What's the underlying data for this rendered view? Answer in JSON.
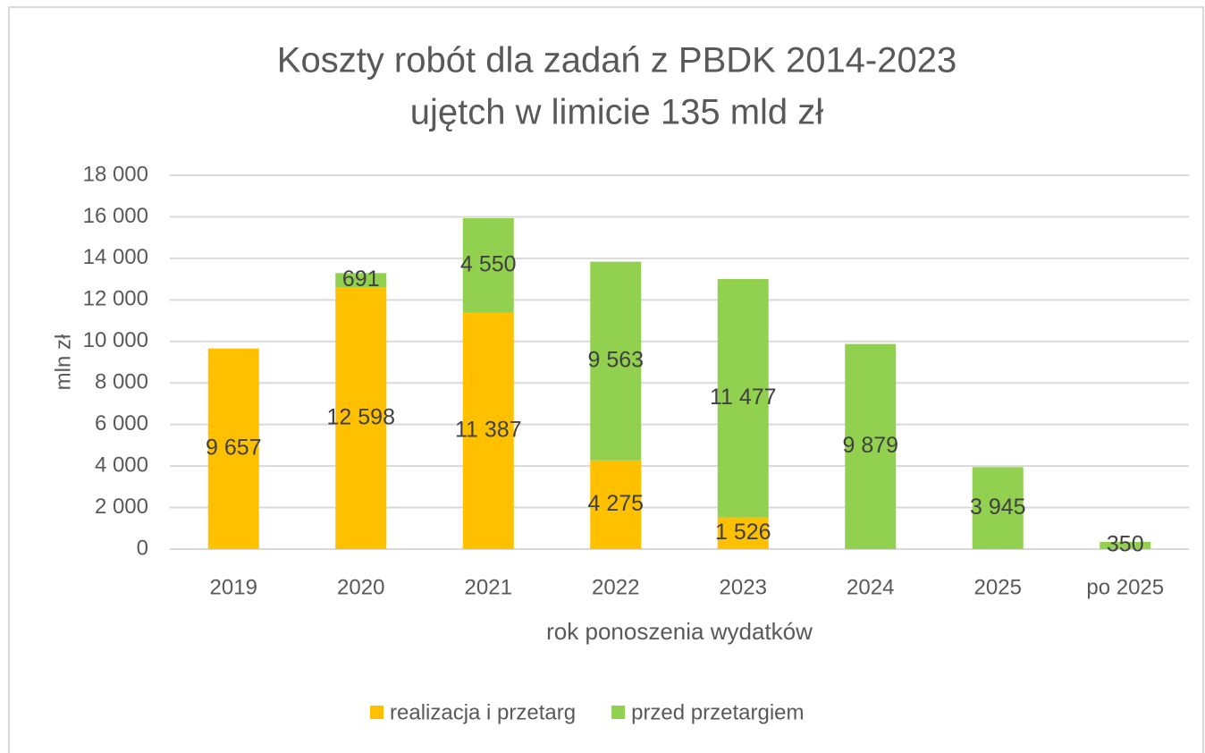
{
  "chart_data": {
    "type": "stacked_bar",
    "title": "Koszty robót dla zadań z PBDK 2014-2023",
    "subtitle": "ujętch w limicie 135 mld zł",
    "y_label": "mln zł",
    "x_label": "rok ponoszenia wydatków",
    "categories": [
      "2019",
      "2020",
      "2021",
      "2022",
      "2023",
      "2024",
      "2025",
      "po 2025"
    ],
    "series": [
      {
        "name": "realizacja i przetarg",
        "color": "#ffc000",
        "values": [
          9657,
          12598,
          11387,
          4275,
          1526,
          null,
          null,
          null
        ],
        "value_labels": [
          "9 657",
          "12 598",
          "11 387",
          "4 275",
          "1 526",
          null,
          null,
          null
        ]
      },
      {
        "name": "przed przetargiem",
        "color": "#92d050",
        "values": [
          null,
          691,
          4550,
          9563,
          11477,
          9879,
          3945,
          350
        ],
        "value_labels": [
          null,
          "691",
          "4 550",
          "9 563",
          "11 477",
          "9 879",
          "3 945",
          "350"
        ]
      }
    ],
    "ylim": [
      0,
      18000
    ],
    "yticks": [
      0,
      {
        "value": 2000,
        "label": "2 000"
      },
      {
        "value": 4000,
        "label": "4 000"
      },
      {
        "value": 6000,
        "label": "6 000"
      },
      {
        "value": 8000,
        "label": "8 000"
      },
      {
        "value": 10000,
        "label": "10 000"
      },
      {
        "value": 12000,
        "label": "12 000"
      },
      {
        "value": 14000,
        "label": "14 000"
      },
      {
        "value": 16000,
        "label": "16 000"
      },
      {
        "value": 18000,
        "label": "18 000"
      }
    ],
    "grid": true,
    "legend": "bottom"
  }
}
